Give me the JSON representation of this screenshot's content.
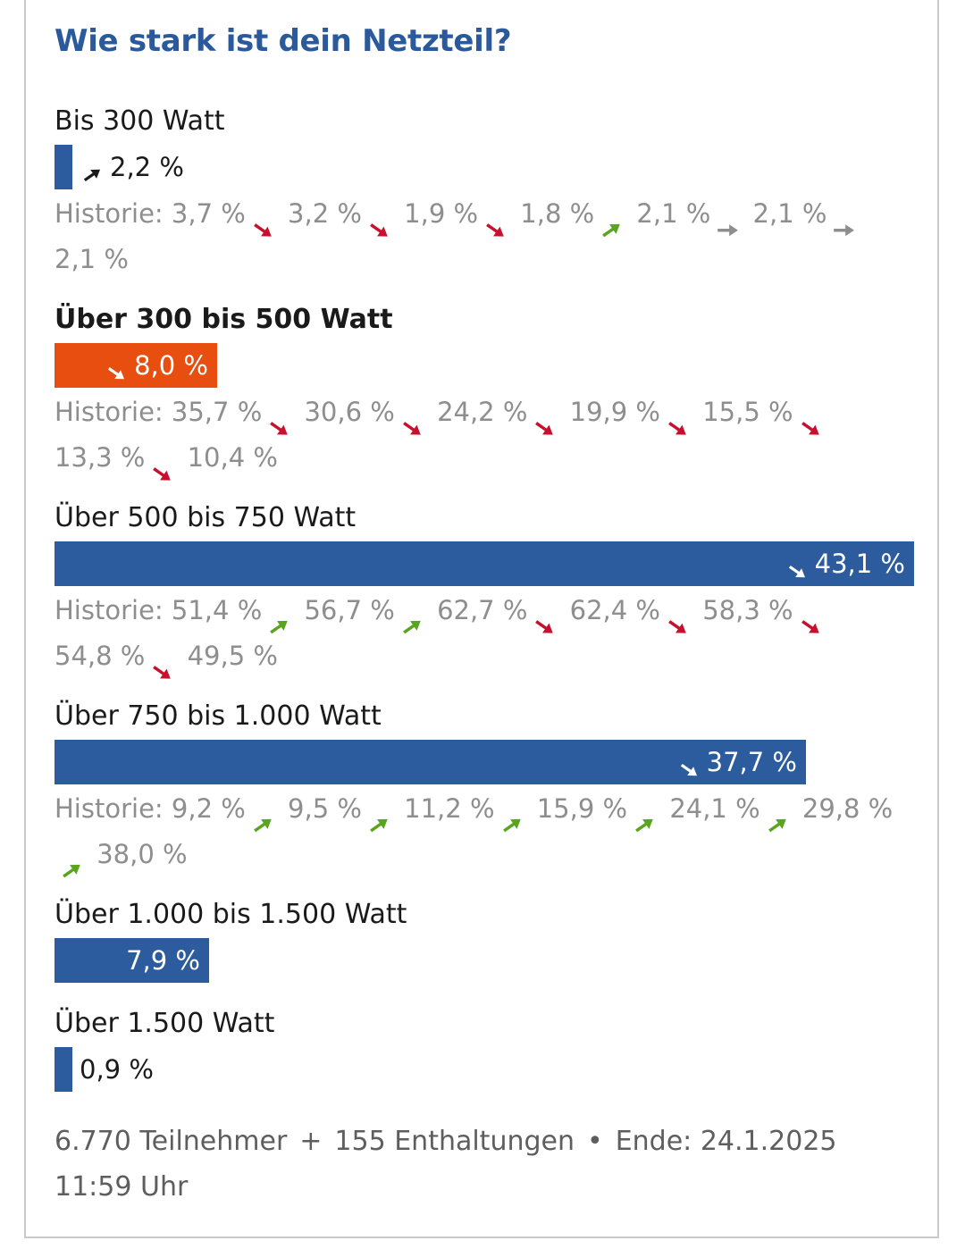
{
  "poll": {
    "title": "Wie stark ist dein Netzteil?",
    "history_prefix": "Historie:",
    "options": [
      {
        "label": "Bis 300 Watt",
        "value": "2,2 %",
        "share": 2.2,
        "trend": "up-neutral",
        "selected": false,
        "history": [
          {
            "v": "3,7 %",
            "t": "down"
          },
          {
            "v": "3,2 %",
            "t": "down"
          },
          {
            "v": "1,9 %",
            "t": "down"
          },
          {
            "v": "1,8 %",
            "t": "up"
          },
          {
            "v": "2,1 %",
            "t": "flat"
          },
          {
            "v": "2,1 %",
            "t": "flat"
          },
          {
            "v": "2,1 %",
            "t": null
          }
        ]
      },
      {
        "label": "Über 300 bis 500 Watt",
        "value": "8,0 %",
        "share": 8.0,
        "trend": "down-white",
        "selected": true,
        "history": [
          {
            "v": "35,7 %",
            "t": "down"
          },
          {
            "v": "30,6 %",
            "t": "down"
          },
          {
            "v": "24,2 %",
            "t": "down"
          },
          {
            "v": "19,9 %",
            "t": "down"
          },
          {
            "v": "15,5 %",
            "t": "down"
          },
          {
            "v": "13,3 %",
            "t": "down"
          },
          {
            "v": "10,4 %",
            "t": null
          }
        ]
      },
      {
        "label": "Über 500 bis 750 Watt",
        "value": "43,1 %",
        "share": 43.1,
        "trend": "down-white",
        "selected": false,
        "history": [
          {
            "v": "51,4 %",
            "t": "up"
          },
          {
            "v": "56,7 %",
            "t": "up"
          },
          {
            "v": "62,7 %",
            "t": "down"
          },
          {
            "v": "62,4 %",
            "t": "down"
          },
          {
            "v": "58,3 %",
            "t": "down"
          },
          {
            "v": "54,8 %",
            "t": "down"
          },
          {
            "v": "49,5 %",
            "t": null
          }
        ]
      },
      {
        "label": "Über 750 bis 1.000 Watt",
        "value": "37,7 %",
        "share": 37.7,
        "trend": "down-white",
        "selected": false,
        "history": [
          {
            "v": "9,2 %",
            "t": "up"
          },
          {
            "v": "9,5 %",
            "t": "up"
          },
          {
            "v": "11,2 %",
            "t": "up"
          },
          {
            "v": "15,9 %",
            "t": "up"
          },
          {
            "v": "24,1 %",
            "t": "up"
          },
          {
            "v": "29,8 %",
            "t": "up"
          },
          {
            "v": "38,0 %",
            "t": null
          }
        ]
      },
      {
        "label": "Über 1.000 bis 1.500 Watt",
        "value": "7,9 %",
        "share": 7.9,
        "trend": null,
        "selected": false,
        "history": []
      },
      {
        "label": "Über 1.500 Watt",
        "value": "0,9 %",
        "share": 0.9,
        "trend": null,
        "selected": false,
        "history": []
      }
    ],
    "footer": {
      "participants": "6.770 Teilnehmer",
      "plus": "+",
      "abstentions": "155 Enthaltungen",
      "dot": "•",
      "end": "Ende: 24.1.2025 11:59 Uhr"
    }
  },
  "colors": {
    "accent": "#2a5a9c",
    "bar": "#2c5c9e",
    "selected_bar": "#e84e0f",
    "trend_up": "#5aa51e",
    "trend_down": "#c8102e",
    "trend_flat": "#8e8e8e"
  }
}
